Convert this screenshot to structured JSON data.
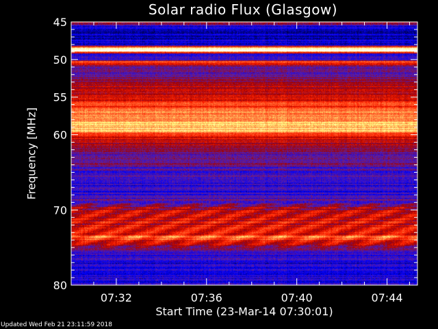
{
  "chart_data": {
    "type": "heatmap",
    "title": "Solar radio Flux (Glasgow)",
    "xlabel": "Start Time (23-Mar-14 07:30:01)",
    "ylabel": "Frequency [MHz]",
    "x_ticks": [
      "07:32",
      "07:36",
      "07:40",
      "07:44"
    ],
    "x_range_minutes": [
      0,
      15.35
    ],
    "x_tick_minutes": [
      2,
      6,
      10,
      14
    ],
    "y_ticks": [
      45,
      50,
      55,
      60,
      70,
      80
    ],
    "ylim": [
      45,
      80
    ],
    "y_inverted": true,
    "colormap": [
      "#000050",
      "#0000ff",
      "#6020a0",
      "#a00000",
      "#ff2000",
      "#ff8040",
      "#ffff80",
      "#ffffff"
    ],
    "relative_intensity_profile": {
      "frequency_mhz": [
        45,
        45.5,
        46,
        47,
        48,
        48.5,
        48.8,
        49.2,
        50,
        50.3,
        51,
        52,
        53,
        54,
        55,
        56,
        57,
        58,
        59,
        59.5,
        60,
        61,
        62,
        63,
        64,
        65,
        66,
        67,
        68,
        69,
        70,
        71,
        72,
        73,
        73.7,
        74,
        75,
        76,
        77,
        78,
        79,
        80
      ],
      "intensity": [
        0.45,
        0.15,
        0.08,
        0.08,
        0.15,
        0.95,
        1.0,
        0.2,
        0.25,
        0.7,
        0.3,
        0.28,
        0.4,
        0.45,
        0.5,
        0.6,
        0.7,
        0.75,
        0.8,
        0.85,
        0.55,
        0.45,
        0.35,
        0.3,
        0.3,
        0.22,
        0.2,
        0.2,
        0.2,
        0.3,
        0.48,
        0.5,
        0.5,
        0.52,
        0.75,
        0.48,
        0.35,
        0.2,
        0.18,
        0.2,
        0.18,
        0.2
      ]
    }
  },
  "footer": "Updated Wed Feb 21 23:11:59 2018"
}
